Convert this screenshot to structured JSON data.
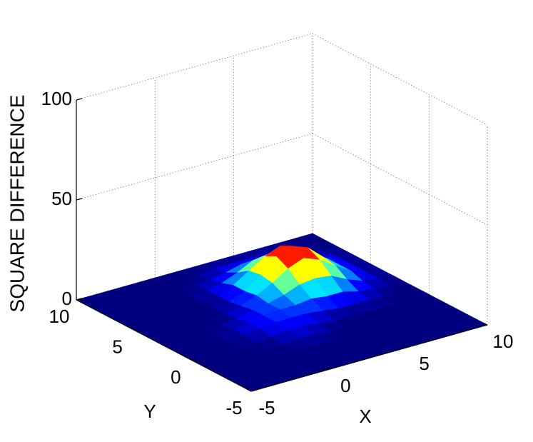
{
  "chart_data": {
    "type": "surface",
    "zlabel": "SQUARE DIFFERENCE",
    "xlabel": "X",
    "ylabel": "Y",
    "x": [
      -5,
      -4,
      -3,
      -2,
      -1,
      0,
      1,
      2,
      3,
      4,
      5,
      6,
      7,
      8,
      9,
      10
    ],
    "y": [
      -5,
      -4,
      -3,
      -2,
      -1,
      0,
      1,
      2,
      3,
      4,
      5,
      6,
      7,
      8,
      9,
      10
    ],
    "z": [
      [
        0,
        0,
        0,
        0,
        0,
        0,
        0,
        0,
        0,
        0,
        0,
        0,
        0,
        0,
        0,
        0
      ],
      [
        0,
        0,
        0,
        0,
        0,
        0,
        0,
        0,
        0,
        0,
        0,
        0,
        0,
        0,
        0,
        0
      ],
      [
        0,
        0,
        0,
        0,
        0,
        0,
        0,
        0,
        0,
        0,
        0,
        0,
        0,
        0,
        0,
        0
      ],
      [
        0,
        0,
        0,
        0,
        0,
        0,
        0,
        0,
        0,
        0,
        0,
        0,
        0,
        0,
        0,
        0
      ],
      [
        0,
        0,
        0,
        0,
        0,
        0,
        1,
        1,
        0,
        0,
        0,
        0,
        0,
        0,
        0,
        0
      ],
      [
        0,
        0,
        0,
        0,
        0,
        1,
        2,
        2,
        1,
        0,
        0,
        0,
        0,
        0,
        0,
        0
      ],
      [
        0,
        0,
        0,
        0,
        1,
        2,
        3,
        3,
        3,
        2,
        1,
        1,
        1,
        0,
        0,
        0
      ],
      [
        0,
        0,
        0,
        0,
        1,
        2,
        3,
        4,
        4,
        5,
        4,
        4,
        2,
        1,
        0,
        0
      ],
      [
        0,
        0,
        0,
        0,
        0,
        1,
        3,
        4,
        6,
        9,
        10,
        9,
        5,
        2,
        1,
        0
      ],
      [
        0,
        0,
        0,
        0,
        0,
        0,
        2,
        5,
        9,
        14,
        17,
        14,
        9,
        4,
        1,
        0
      ],
      [
        0,
        0,
        0,
        0,
        0,
        0,
        1,
        4,
        10,
        17,
        20,
        17,
        10,
        4,
        1,
        0
      ],
      [
        0,
        0,
        0,
        0,
        0,
        0,
        1,
        4,
        9,
        14,
        17,
        14,
        9,
        4,
        1,
        0
      ],
      [
        0,
        0,
        0,
        0,
        0,
        0,
        1,
        2,
        5,
        9,
        10,
        9,
        5,
        2,
        1,
        0
      ],
      [
        0,
        0,
        0,
        0,
        0,
        0,
        0,
        1,
        2,
        4,
        4,
        4,
        2,
        1,
        0,
        0
      ],
      [
        0,
        0,
        0,
        0,
        0,
        0,
        0,
        0,
        1,
        1,
        1,
        1,
        1,
        0,
        0,
        0
      ],
      [
        0,
        0,
        0,
        0,
        0,
        0,
        0,
        0,
        0,
        0,
        0,
        0,
        0,
        0,
        0,
        0
      ]
    ],
    "xlim": [
      -5,
      10
    ],
    "ylim": [
      -5,
      10
    ],
    "zlim": [
      0,
      100
    ],
    "xticks": [
      -5,
      0,
      5,
      10
    ],
    "yticks": [
      -5,
      0,
      5,
      10
    ],
    "zticks": [
      0,
      50,
      100
    ],
    "colormap": "jet",
    "grid": true
  }
}
